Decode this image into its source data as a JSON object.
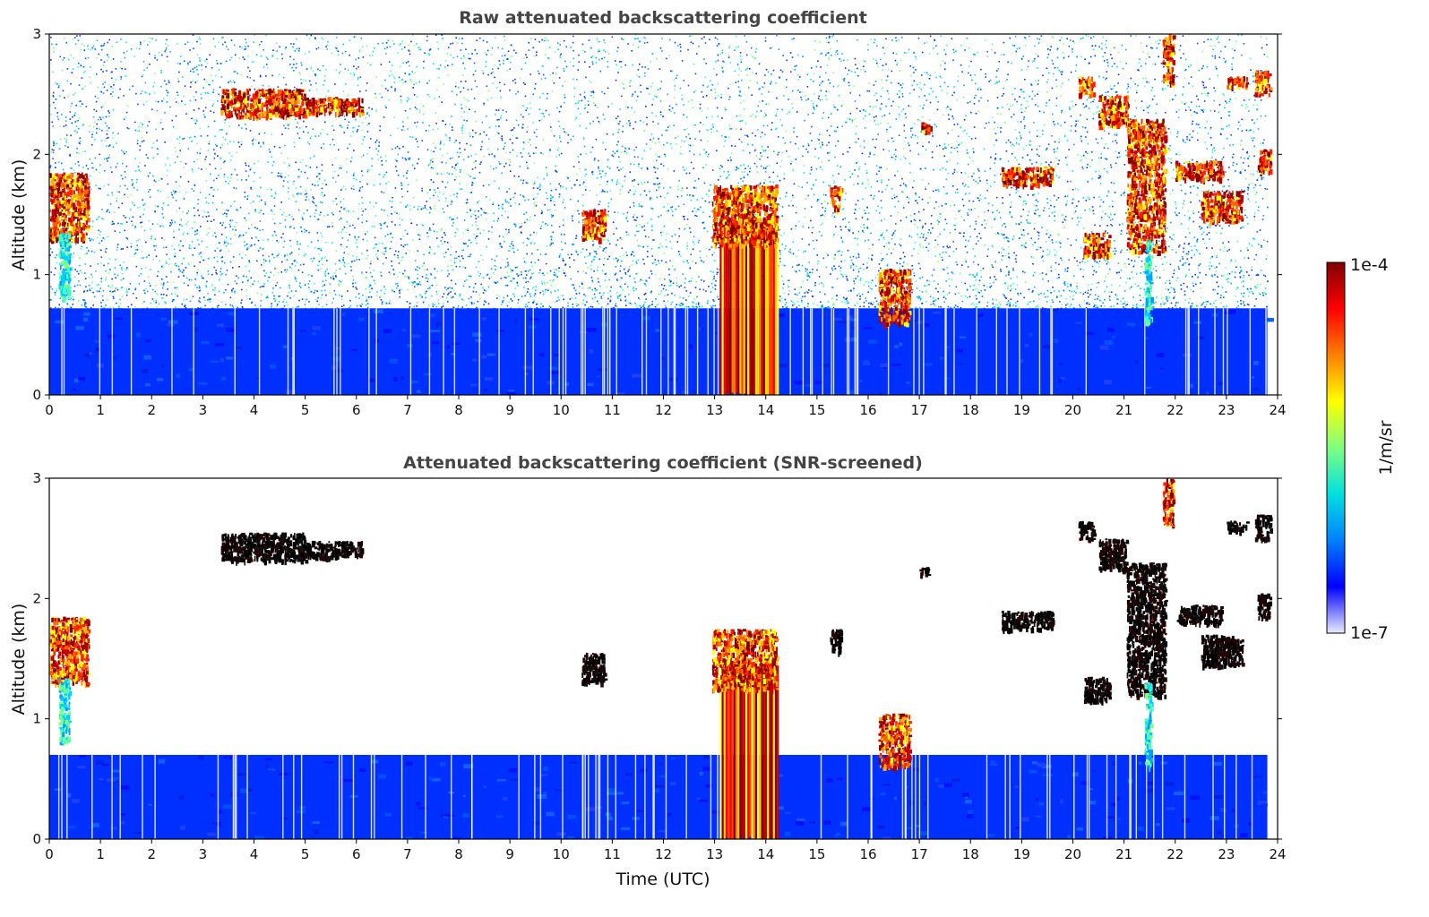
{
  "chart_data": [
    {
      "type": "heatmap",
      "title": "Raw attenuated backscattering coefficient",
      "xlabel": "",
      "ylabel": "Altitude (km)",
      "xlim": [
        0,
        24
      ],
      "ylim": [
        0,
        3
      ],
      "xticks": [
        "0",
        "1",
        "2",
        "3",
        "4",
        "5",
        "6",
        "7",
        "8",
        "9",
        "10",
        "11",
        "12",
        "13",
        "14",
        "15",
        "16",
        "17",
        "18",
        "19",
        "20",
        "21",
        "22",
        "23",
        "24"
      ],
      "yticks": [
        "0",
        "1",
        "2",
        "3"
      ],
      "noise": "random",
      "boundary_layer": {
        "top_km": 0.72,
        "to_hour": 23.8
      },
      "features": [
        {
          "x0": 0.0,
          "x1": 0.75,
          "y0": 1.3,
          "y1": 1.85,
          "level": "high"
        },
        {
          "x0": 0.18,
          "x1": 0.38,
          "y0": 0.8,
          "y1": 1.35,
          "level": "medium"
        },
        {
          "x0": 3.35,
          "x1": 5.0,
          "y0": 2.32,
          "y1": 2.55,
          "level": "high"
        },
        {
          "x0": 5.0,
          "x1": 6.1,
          "y0": 2.35,
          "y1": 2.48,
          "level": "high"
        },
        {
          "x0": 10.4,
          "x1": 10.85,
          "y0": 1.3,
          "y1": 1.55,
          "level": "high"
        },
        {
          "x0": 13.1,
          "x1": 14.25,
          "y0": 0.02,
          "y1": 1.5,
          "level": "column"
        },
        {
          "x0": 12.95,
          "x1": 14.2,
          "y0": 1.25,
          "y1": 1.75,
          "level": "high"
        },
        {
          "x0": 15.25,
          "x1": 15.45,
          "y0": 1.55,
          "y1": 1.75,
          "level": "high"
        },
        {
          "x0": 16.2,
          "x1": 16.8,
          "y0": 0.6,
          "y1": 1.05,
          "level": "high"
        },
        {
          "x0": 17.0,
          "x1": 17.2,
          "y0": 2.2,
          "y1": 2.27,
          "level": "high"
        },
        {
          "x0": 18.6,
          "x1": 19.6,
          "y0": 1.75,
          "y1": 1.9,
          "level": "high"
        },
        {
          "x0": 20.1,
          "x1": 20.4,
          "y0": 2.5,
          "y1": 2.65,
          "level": "high"
        },
        {
          "x0": 20.5,
          "x1": 21.05,
          "y0": 2.25,
          "y1": 2.5,
          "level": "high"
        },
        {
          "x0": 20.2,
          "x1": 20.7,
          "y0": 1.15,
          "y1": 1.35,
          "level": "high"
        },
        {
          "x0": 21.05,
          "x1": 21.8,
          "y0": 1.2,
          "y1": 2.3,
          "level": "high"
        },
        {
          "x0": 21.4,
          "x1": 21.52,
          "y0": 0.6,
          "y1": 1.3,
          "level": "medium"
        },
        {
          "x0": 21.75,
          "x1": 21.95,
          "y0": 2.6,
          "y1": 3.0,
          "level": "high"
        },
        {
          "x0": 22.0,
          "x1": 22.9,
          "y0": 1.8,
          "y1": 1.95,
          "level": "high"
        },
        {
          "x0": 22.5,
          "x1": 23.3,
          "y0": 1.45,
          "y1": 1.7,
          "level": "high"
        },
        {
          "x0": 23.0,
          "x1": 23.4,
          "y0": 2.57,
          "y1": 2.65,
          "level": "high"
        },
        {
          "x0": 23.6,
          "x1": 23.85,
          "y0": 1.85,
          "y1": 2.05,
          "level": "high"
        },
        {
          "x0": 23.55,
          "x1": 23.85,
          "y0": 2.5,
          "y1": 2.7,
          "level": "high"
        }
      ]
    },
    {
      "type": "heatmap",
      "title": "Attenuated backscattering coefficient (SNR-screened)",
      "xlabel": "Time (UTC)",
      "ylabel": "Altitude (km)",
      "xlim": [
        0,
        24
      ],
      "ylim": [
        0,
        3
      ],
      "xticks": [
        "0",
        "1",
        "2",
        "3",
        "4",
        "5",
        "6",
        "7",
        "8",
        "9",
        "10",
        "11",
        "12",
        "13",
        "14",
        "15",
        "16",
        "17",
        "18",
        "19",
        "20",
        "21",
        "22",
        "23",
        "24"
      ],
      "yticks": [
        "0",
        "1",
        "2",
        "3"
      ],
      "noise": "none",
      "boundary_layer": {
        "top_km": 0.7,
        "to_hour": 23.8
      },
      "features": [
        {
          "x0": 0.0,
          "x1": 0.75,
          "y0": 1.3,
          "y1": 1.85,
          "level": "high"
        },
        {
          "x0": 0.18,
          "x1": 0.38,
          "y0": 0.8,
          "y1": 1.35,
          "level": "medium"
        },
        {
          "x0": 3.35,
          "x1": 5.0,
          "y0": 2.32,
          "y1": 2.55,
          "level": "black"
        },
        {
          "x0": 5.0,
          "x1": 6.1,
          "y0": 2.35,
          "y1": 2.48,
          "level": "black"
        },
        {
          "x0": 10.4,
          "x1": 10.85,
          "y0": 1.3,
          "y1": 1.55,
          "level": "black"
        },
        {
          "x0": 13.1,
          "x1": 14.25,
          "y0": 0.02,
          "y1": 1.5,
          "level": "column"
        },
        {
          "x0": 12.95,
          "x1": 14.2,
          "y0": 1.25,
          "y1": 1.75,
          "level": "high"
        },
        {
          "x0": 15.25,
          "x1": 15.45,
          "y0": 1.55,
          "y1": 1.75,
          "level": "black"
        },
        {
          "x0": 16.2,
          "x1": 16.8,
          "y0": 0.6,
          "y1": 1.05,
          "level": "high"
        },
        {
          "x0": 17.0,
          "x1": 17.2,
          "y0": 2.2,
          "y1": 2.27,
          "level": "black"
        },
        {
          "x0": 18.6,
          "x1": 19.6,
          "y0": 1.75,
          "y1": 1.9,
          "level": "black"
        },
        {
          "x0": 20.1,
          "x1": 20.4,
          "y0": 2.5,
          "y1": 2.65,
          "level": "black"
        },
        {
          "x0": 20.5,
          "x1": 21.05,
          "y0": 2.25,
          "y1": 2.5,
          "level": "black"
        },
        {
          "x0": 20.2,
          "x1": 20.7,
          "y0": 1.15,
          "y1": 1.35,
          "level": "black"
        },
        {
          "x0": 21.05,
          "x1": 21.8,
          "y0": 1.2,
          "y1": 2.3,
          "level": "black"
        },
        {
          "x0": 21.4,
          "x1": 21.52,
          "y0": 0.6,
          "y1": 1.3,
          "level": "medium"
        },
        {
          "x0": 21.75,
          "x1": 21.95,
          "y0": 2.6,
          "y1": 3.0,
          "level": "high"
        },
        {
          "x0": 22.0,
          "x1": 22.9,
          "y0": 1.8,
          "y1": 1.95,
          "level": "black"
        },
        {
          "x0": 22.5,
          "x1": 23.3,
          "y0": 1.45,
          "y1": 1.7,
          "level": "black"
        },
        {
          "x0": 23.0,
          "x1": 23.4,
          "y0": 2.57,
          "y1": 2.65,
          "level": "black"
        },
        {
          "x0": 23.6,
          "x1": 23.85,
          "y0": 1.85,
          "y1": 2.05,
          "level": "black"
        },
        {
          "x0": 23.55,
          "x1": 23.85,
          "y0": 2.5,
          "y1": 2.7,
          "level": "black"
        }
      ]
    }
  ],
  "colorbar": {
    "label": "1/m/sr",
    "max_label": "1e-4",
    "min_label": "1e-7",
    "colormap": [
      "#e8ecff",
      "#0000ff",
      "#0080ff",
      "#00e0e0",
      "#80ff80",
      "#ffff00",
      "#ff8000",
      "#ff0000",
      "#800000"
    ]
  }
}
